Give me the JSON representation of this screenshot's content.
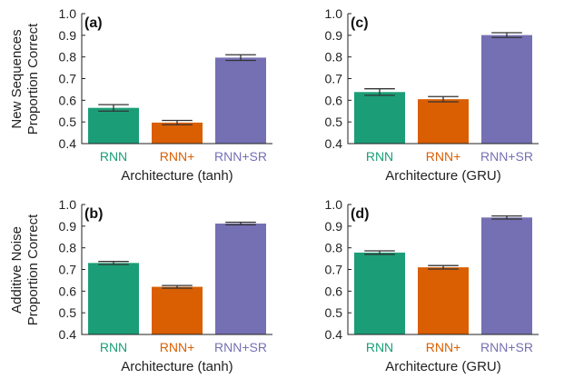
{
  "colors": {
    "RNN": "#1b9e77",
    "RNN+": "#d95f02",
    "RNN+SR": "#7570b3",
    "axis": "#222222",
    "errorbar": "#333333"
  },
  "row_labels": {
    "top": {
      "line1": "New Sequences",
      "line2": "Proportion Correct"
    },
    "bottom": {
      "line1": "Additive Noise",
      "line2": "Proportion Correct"
    }
  },
  "chart_data": [
    {
      "id": "a",
      "type": "bar",
      "panel_label": "(a)",
      "categories": [
        "RNN",
        "RNN+",
        "RNN+SR"
      ],
      "values": [
        0.565,
        0.497,
        0.797
      ],
      "errors": [
        0.015,
        0.01,
        0.013
      ],
      "xlabel": "Architecture (tanh)",
      "ylabel": "Proportion Correct",
      "ylim": [
        0.4,
        1.0
      ],
      "yticks": [
        "0.4",
        "0.5",
        "0.6",
        "0.7",
        "0.8",
        "0.9",
        "1.0"
      ],
      "grid": false
    },
    {
      "id": "c",
      "type": "bar",
      "panel_label": "(c)",
      "categories": [
        "RNN",
        "RNN+",
        "RNN+SR"
      ],
      "values": [
        0.638,
        0.605,
        0.901
      ],
      "errors": [
        0.015,
        0.012,
        0.011
      ],
      "xlabel": "Architecture (GRU)",
      "ylabel": "",
      "ylim": [
        0.4,
        1.0
      ],
      "yticks": [
        "0.4",
        "0.5",
        "0.6",
        "0.7",
        "0.8",
        "0.9",
        "1.0"
      ],
      "grid": false
    },
    {
      "id": "b",
      "type": "bar",
      "panel_label": "(b)",
      "categories": [
        "RNN",
        "RNN+",
        "RNN+SR"
      ],
      "values": [
        0.73,
        0.62,
        0.912
      ],
      "errors": [
        0.007,
        0.006,
        0.006
      ],
      "xlabel": "Architecture (tanh)",
      "ylabel": "Proportion Correct",
      "ylim": [
        0.4,
        1.0
      ],
      "yticks": [
        "0.4",
        "0.5",
        "0.6",
        "0.7",
        "0.8",
        "0.9",
        "1.0"
      ],
      "grid": false
    },
    {
      "id": "d",
      "type": "bar",
      "panel_label": "(d)",
      "categories": [
        "RNN",
        "RNN+",
        "RNN+SR"
      ],
      "values": [
        0.778,
        0.71,
        0.94
      ],
      "errors": [
        0.008,
        0.008,
        0.007
      ],
      "xlabel": "Architecture (GRU)",
      "ylabel": "",
      "ylim": [
        0.4,
        1.0
      ],
      "yticks": [
        "0.4",
        "0.5",
        "0.6",
        "0.7",
        "0.8",
        "0.9",
        "1.0"
      ],
      "grid": false
    }
  ]
}
